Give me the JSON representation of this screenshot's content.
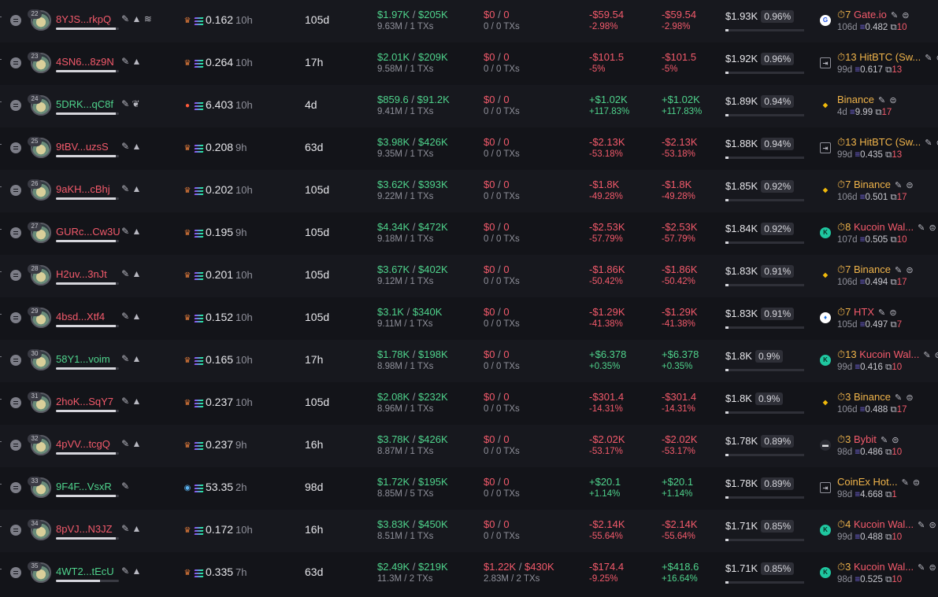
{
  "icons": {
    "row_menu": "list-menu-icon",
    "edit": "pencil-icon",
    "flag": "mountain-icon",
    "layers": "layers-icon",
    "sprout": "sprout-icon",
    "source_default": "crown-icon",
    "source_pump": "pump-icon",
    "source_eye": "eye-icon",
    "sol": "solana-icon",
    "timer": "timer-icon",
    "info": "info-circle-icon",
    "transfer": "transfer-box-icon"
  },
  "colors": {
    "positive": "#4fd38c",
    "negative": "#f35a6b",
    "muted": "#8f909a",
    "exchange": "#f0b44a"
  },
  "rows": [
    {
      "rank": "22",
      "name": "8YJS...rkpQ",
      "name_color": "red",
      "name_icons": "✎ ▲ ≋",
      "name_fill": 0.95,
      "source": "crown",
      "sol_balance": "0.162",
      "age": "10h",
      "hold": "105d",
      "bought_usd": "$1.97K",
      "bought_sol": "$205K",
      "bought_tx": "9.63M / 1 TXs",
      "sold_usd": "$0",
      "sold_sol": "0",
      "sold_tx": "0 / 0 TXs",
      "pnl_usd": "-$59.54",
      "pnl_pct": "-2.98%",
      "pnl_color": "red",
      "upnl_usd": "-$59.54",
      "upnl_pct": "-2.98%",
      "upnl_color": "red",
      "remaining_usd": "$1.93K",
      "remaining_pct": "0.96%",
      "remaining_fill": 0.96,
      "exch_icon": "gate",
      "exch_count": "7",
      "exch_name": "Gate.io",
      "exch_color": "red",
      "exch_age": "106d",
      "exch_sol": "0.482",
      "exch_tx": "10"
    },
    {
      "rank": "23",
      "name": "4SN6...8z9N",
      "name_color": "red",
      "name_icons": "✎ ▲",
      "name_fill": 0.95,
      "source": "crown",
      "sol_balance": "0.264",
      "age": "10h",
      "hold": "17h",
      "bought_usd": "$2.01K",
      "bought_sol": "$209K",
      "bought_tx": "9.58M / 1 TXs",
      "sold_usd": "$0",
      "sold_sol": "0",
      "sold_tx": "0 / 0 TXs",
      "pnl_usd": "-$101.5",
      "pnl_pct": "-5%",
      "pnl_color": "red",
      "upnl_usd": "-$101.5",
      "upnl_pct": "-5%",
      "upnl_color": "red",
      "remaining_usd": "$1.92K",
      "remaining_pct": "0.96%",
      "remaining_fill": 0.96,
      "exch_icon": "transfer",
      "exch_count": "13",
      "exch_name": "HitBTC (Sw...",
      "exch_color": "amber",
      "exch_age": "99d",
      "exch_sol": "0.617",
      "exch_tx": "13"
    },
    {
      "rank": "24",
      "name": "5DRK...qC8f",
      "name_color": "green",
      "name_icons": "✎ ❦",
      "name_fill": 0.95,
      "source": "pump",
      "sol_balance": "6.403",
      "age": "10h",
      "hold": "4d",
      "bought_usd": "$859.6",
      "bought_sol": "$91.2K",
      "bought_tx": "9.41M / 1 TXs",
      "sold_usd": "$0",
      "sold_sol": "0",
      "sold_tx": "0 / 0 TXs",
      "pnl_usd": "+$1.02K",
      "pnl_pct": "+117.83%",
      "pnl_color": "green",
      "upnl_usd": "+$1.02K",
      "upnl_pct": "+117.83%",
      "upnl_color": "green",
      "remaining_usd": "$1.89K",
      "remaining_pct": "0.94%",
      "remaining_fill": 0.94,
      "exch_icon": "binance",
      "exch_count": "",
      "exch_name": "Binance",
      "exch_color": "amber",
      "exch_age": "4d",
      "exch_sol": "9.99",
      "exch_tx": "17"
    },
    {
      "rank": "25",
      "name": "9tBV...uzsS",
      "name_color": "red",
      "name_icons": "✎ ▲",
      "name_fill": 0.95,
      "source": "crown",
      "sol_balance": "0.208",
      "age": "9h",
      "hold": "63d",
      "bought_usd": "$3.98K",
      "bought_sol": "$426K",
      "bought_tx": "9.35M / 1 TXs",
      "sold_usd": "$0",
      "sold_sol": "0",
      "sold_tx": "0 / 0 TXs",
      "pnl_usd": "-$2.13K",
      "pnl_pct": "-53.18%",
      "pnl_color": "red",
      "upnl_usd": "-$2.13K",
      "upnl_pct": "-53.18%",
      "upnl_color": "red",
      "remaining_usd": "$1.88K",
      "remaining_pct": "0.94%",
      "remaining_fill": 0.94,
      "exch_icon": "transfer",
      "exch_count": "13",
      "exch_name": "HitBTC (Sw...",
      "exch_color": "amber",
      "exch_age": "99d",
      "exch_sol": "0.435",
      "exch_tx": "13"
    },
    {
      "rank": "26",
      "name": "9aKH...cBhj",
      "name_color": "red",
      "name_icons": "✎ ▲",
      "name_fill": 0.95,
      "source": "crown",
      "sol_balance": "0.202",
      "age": "10h",
      "hold": "105d",
      "bought_usd": "$3.62K",
      "bought_sol": "$393K",
      "bought_tx": "9.22M / 1 TXs",
      "sold_usd": "$0",
      "sold_sol": "0",
      "sold_tx": "0 / 0 TXs",
      "pnl_usd": "-$1.8K",
      "pnl_pct": "-49.28%",
      "pnl_color": "red",
      "upnl_usd": "-$1.8K",
      "upnl_pct": "-49.28%",
      "upnl_color": "red",
      "remaining_usd": "$1.85K",
      "remaining_pct": "0.92%",
      "remaining_fill": 0.92,
      "exch_icon": "binance",
      "exch_count": "7",
      "exch_name": "Binance",
      "exch_color": "amber",
      "exch_age": "106d",
      "exch_sol": "0.501",
      "exch_tx": "17"
    },
    {
      "rank": "27",
      "name": "GURc...Cw3U",
      "name_color": "red",
      "name_icons": "✎ ▲",
      "name_fill": 0.95,
      "source": "crown",
      "sol_balance": "0.195",
      "age": "9h",
      "hold": "105d",
      "bought_usd": "$4.34K",
      "bought_sol": "$472K",
      "bought_tx": "9.18M / 1 TXs",
      "sold_usd": "$0",
      "sold_sol": "0",
      "sold_tx": "0 / 0 TXs",
      "pnl_usd": "-$2.53K",
      "pnl_pct": "-57.79%",
      "pnl_color": "red",
      "upnl_usd": "-$2.53K",
      "upnl_pct": "-57.79%",
      "upnl_color": "red",
      "remaining_usd": "$1.84K",
      "remaining_pct": "0.92%",
      "remaining_fill": 0.92,
      "exch_icon": "kucoin",
      "exch_count": "8",
      "exch_name": "Kucoin Wal...",
      "exch_color": "red",
      "exch_age": "107d",
      "exch_sol": "0.505",
      "exch_tx": "10"
    },
    {
      "rank": "28",
      "name": "H2uv...3nJt",
      "name_color": "red",
      "name_icons": "✎ ▲",
      "name_fill": 0.95,
      "source": "crown",
      "sol_balance": "0.201",
      "age": "10h",
      "hold": "105d",
      "bought_usd": "$3.67K",
      "bought_sol": "$402K",
      "bought_tx": "9.12M / 1 TXs",
      "sold_usd": "$0",
      "sold_sol": "0",
      "sold_tx": "0 / 0 TXs",
      "pnl_usd": "-$1.86K",
      "pnl_pct": "-50.42%",
      "pnl_color": "red",
      "upnl_usd": "-$1.86K",
      "upnl_pct": "-50.42%",
      "upnl_color": "red",
      "remaining_usd": "$1.83K",
      "remaining_pct": "0.91%",
      "remaining_fill": 0.91,
      "exch_icon": "binance",
      "exch_count": "7",
      "exch_name": "Binance",
      "exch_color": "amber",
      "exch_age": "106d",
      "exch_sol": "0.494",
      "exch_tx": "17"
    },
    {
      "rank": "29",
      "name": "4bsd...Xtf4",
      "name_color": "red",
      "name_icons": "✎ ▲",
      "name_fill": 0.95,
      "source": "crown",
      "sol_balance": "0.152",
      "age": "10h",
      "hold": "105d",
      "bought_usd": "$3.1K",
      "bought_sol": "$340K",
      "bought_tx": "9.11M / 1 TXs",
      "sold_usd": "$0",
      "sold_sol": "0",
      "sold_tx": "0 / 0 TXs",
      "pnl_usd": "-$1.29K",
      "pnl_pct": "-41.38%",
      "pnl_color": "red",
      "upnl_usd": "-$1.29K",
      "upnl_pct": "-41.38%",
      "upnl_color": "red",
      "remaining_usd": "$1.83K",
      "remaining_pct": "0.91%",
      "remaining_fill": 0.91,
      "exch_icon": "htx",
      "exch_count": "7",
      "exch_name": "HTX",
      "exch_color": "red",
      "exch_age": "105d",
      "exch_sol": "0.497",
      "exch_tx": "7"
    },
    {
      "rank": "30",
      "name": "58Y1...voim",
      "name_color": "green",
      "name_icons": "✎ ▲",
      "name_fill": 0.95,
      "source": "crown",
      "sol_balance": "0.165",
      "age": "10h",
      "hold": "17h",
      "bought_usd": "$1.78K",
      "bought_sol": "$198K",
      "bought_tx": "8.98M / 1 TXs",
      "sold_usd": "$0",
      "sold_sol": "0",
      "sold_tx": "0 / 0 TXs",
      "pnl_usd": "+$6.378",
      "pnl_pct": "+0.35%",
      "pnl_color": "green",
      "upnl_usd": "+$6.378",
      "upnl_pct": "+0.35%",
      "upnl_color": "green",
      "remaining_usd": "$1.8K",
      "remaining_pct": "0.9%",
      "remaining_fill": 0.9,
      "exch_icon": "kucoin",
      "exch_count": "13",
      "exch_name": "Kucoin Wal...",
      "exch_color": "red",
      "exch_age": "99d",
      "exch_sol": "0.416",
      "exch_tx": "10"
    },
    {
      "rank": "31",
      "name": "2hoK...SqY7",
      "name_color": "red",
      "name_icons": "✎ ▲",
      "name_fill": 0.95,
      "source": "crown",
      "sol_balance": "0.237",
      "age": "10h",
      "hold": "105d",
      "bought_usd": "$2.08K",
      "bought_sol": "$232K",
      "bought_tx": "8.96M / 1 TXs",
      "sold_usd": "$0",
      "sold_sol": "0",
      "sold_tx": "0 / 0 TXs",
      "pnl_usd": "-$301.4",
      "pnl_pct": "-14.31%",
      "pnl_color": "red",
      "upnl_usd": "-$301.4",
      "upnl_pct": "-14.31%",
      "upnl_color": "red",
      "remaining_usd": "$1.8K",
      "remaining_pct": "0.9%",
      "remaining_fill": 0.9,
      "exch_icon": "binance",
      "exch_count": "3",
      "exch_name": "Binance",
      "exch_color": "amber",
      "exch_age": "106d",
      "exch_sol": "0.488",
      "exch_tx": "17"
    },
    {
      "rank": "32",
      "name": "4pVV...tcgQ",
      "name_color": "red",
      "name_icons": "✎ ▲",
      "name_fill": 0.95,
      "source": "crown",
      "sol_balance": "0.237",
      "age": "9h",
      "hold": "16h",
      "bought_usd": "$3.78K",
      "bought_sol": "$426K",
      "bought_tx": "8.87M / 1 TXs",
      "sold_usd": "$0",
      "sold_sol": "0",
      "sold_tx": "0 / 0 TXs",
      "pnl_usd": "-$2.02K",
      "pnl_pct": "-53.17%",
      "pnl_color": "red",
      "upnl_usd": "-$2.02K",
      "upnl_pct": "-53.17%",
      "upnl_color": "red",
      "remaining_usd": "$1.78K",
      "remaining_pct": "0.89%",
      "remaining_fill": 0.89,
      "exch_icon": "bybit",
      "exch_count": "3",
      "exch_name": "Bybit",
      "exch_color": "red",
      "exch_age": "98d",
      "exch_sol": "0.486",
      "exch_tx": "10"
    },
    {
      "rank": "33",
      "name": "9F4F...VsxR",
      "name_color": "green",
      "name_icons": "✎",
      "name_fill": 0.95,
      "source": "eye",
      "sol_balance": "53.35",
      "age": "2h",
      "hold": "98d",
      "bought_usd": "$1.72K",
      "bought_sol": "$195K",
      "bought_tx": "8.85M / 5 TXs",
      "sold_usd": "$0",
      "sold_sol": "0",
      "sold_tx": "0 / 0 TXs",
      "pnl_usd": "+$20.1",
      "pnl_pct": "+1.14%",
      "pnl_color": "green",
      "upnl_usd": "+$20.1",
      "upnl_pct": "+1.14%",
      "upnl_color": "green",
      "remaining_usd": "$1.78K",
      "remaining_pct": "0.89%",
      "remaining_fill": 0.89,
      "exch_icon": "transfer",
      "exch_count": "",
      "exch_name": "CoinEx Hot...",
      "exch_color": "amber",
      "exch_age": "98d",
      "exch_sol": "4.668",
      "exch_tx": "1"
    },
    {
      "rank": "34",
      "name": "8pVJ...N3JZ",
      "name_color": "red",
      "name_icons": "✎ ▲",
      "name_fill": 0.95,
      "source": "crown",
      "sol_balance": "0.172",
      "age": "10h",
      "hold": "16h",
      "bought_usd": "$3.83K",
      "bought_sol": "$450K",
      "bought_tx": "8.51M / 1 TXs",
      "sold_usd": "$0",
      "sold_sol": "0",
      "sold_tx": "0 / 0 TXs",
      "pnl_usd": "-$2.14K",
      "pnl_pct": "-55.64%",
      "pnl_color": "red",
      "upnl_usd": "-$2.14K",
      "upnl_pct": "-55.64%",
      "upnl_color": "red",
      "remaining_usd": "$1.71K",
      "remaining_pct": "0.85%",
      "remaining_fill": 0.85,
      "exch_icon": "kucoin",
      "exch_count": "4",
      "exch_name": "Kucoin Wal...",
      "exch_color": "red",
      "exch_age": "99d",
      "exch_sol": "0.488",
      "exch_tx": "10"
    },
    {
      "rank": "35",
      "name": "4WT2...tEcU",
      "name_color": "green",
      "name_icons": "✎ ▲",
      "name_fill": 0.7,
      "source": "crown",
      "sol_balance": "0.335",
      "age": "7h",
      "hold": "63d",
      "bought_usd": "$2.49K",
      "bought_sol": "$219K",
      "bought_tx": "11.3M / 2 TXs",
      "sold_usd": "$1.22K",
      "sold_sol": "$430K",
      "sold_tx": "2.83M / 2 TXs",
      "pnl_usd": "-$174.4",
      "pnl_pct": "-9.25%",
      "pnl_color": "red",
      "upnl_usd": "+$418.6",
      "upnl_pct": "+16.64%",
      "upnl_color": "green",
      "remaining_usd": "$1.71K",
      "remaining_pct": "0.85%",
      "remaining_fill": 0.85,
      "exch_icon": "kucoin",
      "exch_count": "3",
      "exch_name": "Kucoin Wal...",
      "exch_color": "red",
      "exch_age": "98d",
      "exch_sol": "0.525",
      "exch_tx": "10"
    }
  ]
}
